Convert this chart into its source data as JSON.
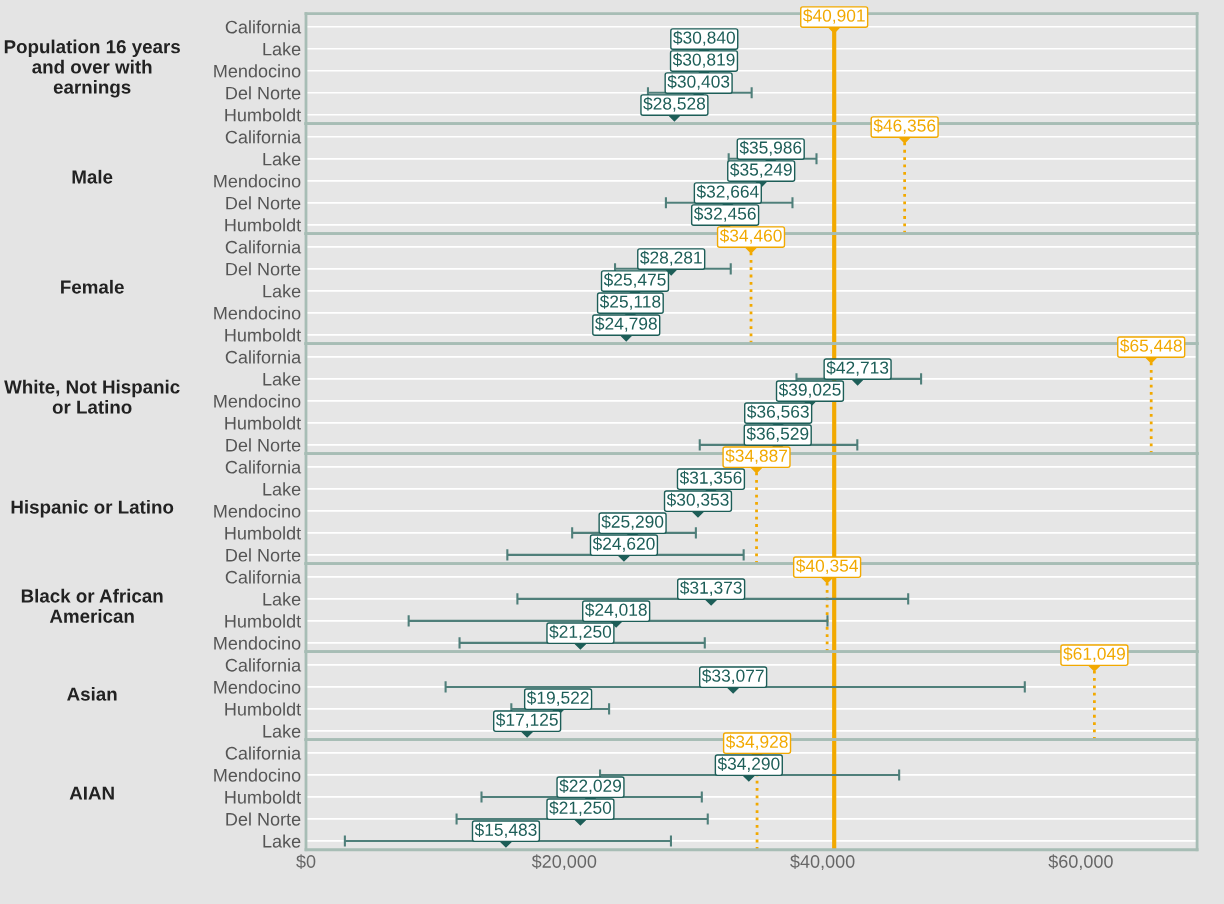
{
  "chart_data": [
    {
      "type": "scatter",
      "orientation": "horizontal",
      "title": "Population 16 years and over with earnings",
      "categories": [
        "California",
        "Lake",
        "Mendocino",
        "Del Norte",
        "Humboldt"
      ],
      "values": [
        40901,
        30840,
        30819,
        30403,
        28528
      ],
      "errors": [
        null,
        null,
        null,
        [
          26480,
          34510
        ],
        null
      ],
      "value_labels": [
        "$40,901",
        "$30,840",
        "$30,819",
        "$30,403",
        "$28,528"
      ],
      "colors": [
        "#f2a900",
        "#1d5e58",
        "#1d5e58",
        "#1d5e58",
        "#1d5e58"
      ],
      "marker": "diamond",
      "xlim": [
        0,
        69000
      ],
      "grid": "y",
      "tick_labels": "y",
      "ref_lines": [
        {
          "axis": "x",
          "value": 40901,
          "color": "#f2a900",
          "line_style": "solid"
        }
      ]
    },
    {
      "type": "scatter",
      "orientation": "horizontal",
      "title": "Male",
      "categories": [
        "California",
        "Lake",
        "Mendocino",
        "Del Norte",
        "Humboldt"
      ],
      "values": [
        46356,
        35986,
        35249,
        32664,
        32456
      ],
      "errors": [
        null,
        [
          32730,
          39530
        ],
        null,
        [
          27870,
          37670
        ],
        null
      ],
      "value_labels": [
        "$46,356",
        "$35,986",
        "$35,249",
        "$32,664",
        "$32,456"
      ],
      "colors": [
        "#f2a900",
        "#1d5e58",
        "#1d5e58",
        "#1d5e58",
        "#1d5e58"
      ],
      "marker": "diamond",
      "xlim": [
        0,
        69000
      ],
      "grid": "y",
      "tick_labels": "y",
      "ref_lines": [
        {
          "axis": "x",
          "value": 40901,
          "color": "#f2a900",
          "line_style": "solid"
        },
        {
          "axis": "x",
          "value": 46356,
          "color": "#f2a900",
          "line_style": "dotted"
        }
      ]
    },
    {
      "type": "scatter",
      "orientation": "horizontal",
      "title": "Female",
      "categories": [
        "California",
        "Del Norte",
        "Lake",
        "Mendocino",
        "Humboldt"
      ],
      "values": [
        34460,
        28281,
        25475,
        25118,
        24798
      ],
      "errors": [
        null,
        [
          23930,
          32890
        ],
        null,
        null,
        null
      ],
      "value_labels": [
        "$34,460",
        "$28,281",
        "$25,475",
        "$25,118",
        "$24,798"
      ],
      "colors": [
        "#f2a900",
        "#1d5e58",
        "#1d5e58",
        "#1d5e58",
        "#1d5e58"
      ],
      "marker": "diamond",
      "xlim": [
        0,
        69000
      ],
      "grid": "y",
      "tick_labels": "y",
      "ref_lines": [
        {
          "axis": "x",
          "value": 40901,
          "color": "#f2a900",
          "line_style": "solid"
        },
        {
          "axis": "x",
          "value": 34460,
          "color": "#f2a900",
          "line_style": "dotted"
        }
      ]
    },
    {
      "type": "scatter",
      "orientation": "horizontal",
      "title": "White, Not Hispanic or Latino",
      "categories": [
        "California",
        "Lake",
        "Mendocino",
        "Humboldt",
        "Del Norte"
      ],
      "values": [
        65448,
        42713,
        39025,
        36563,
        36529
      ],
      "errors": [
        null,
        [
          37980,
          47630
        ],
        null,
        null,
        [
          30490,
          42690
        ]
      ],
      "value_labels": [
        "$65,448",
        "$42,713",
        "$39,025",
        "$36,563",
        "$36,529"
      ],
      "colors": [
        "#f2a900",
        "#1d5e58",
        "#1d5e58",
        "#1d5e58",
        "#1d5e58"
      ],
      "marker": "diamond",
      "xlim": [
        0,
        69000
      ],
      "grid": "y",
      "tick_labels": "y",
      "ref_lines": [
        {
          "axis": "x",
          "value": 40901,
          "color": "#f2a900",
          "line_style": "solid"
        },
        {
          "axis": "x",
          "value": 65448,
          "color": "#f2a900",
          "line_style": "dotted"
        }
      ]
    },
    {
      "type": "scatter",
      "orientation": "horizontal",
      "title": "Hispanic or Latino",
      "categories": [
        "California",
        "Lake",
        "Mendocino",
        "Humboldt",
        "Del Norte"
      ],
      "values": [
        34887,
        31356,
        30353,
        25290,
        24620
      ],
      "errors": [
        null,
        null,
        null,
        [
          20610,
          30190
        ],
        [
          15590,
          33890
        ]
      ],
      "value_labels": [
        "$34,887",
        "$31,356",
        "$30,353",
        "$25,290",
        "$24,620"
      ],
      "colors": [
        "#f2a900",
        "#1d5e58",
        "#1d5e58",
        "#1d5e58",
        "#1d5e58"
      ],
      "marker": "diamond",
      "xlim": [
        0,
        69000
      ],
      "grid": "y",
      "tick_labels": "y",
      "ref_lines": [
        {
          "axis": "x",
          "value": 40901,
          "color": "#f2a900",
          "line_style": "solid"
        },
        {
          "axis": "x",
          "value": 34887,
          "color": "#f2a900",
          "line_style": "dotted"
        }
      ]
    },
    {
      "type": "scatter",
      "orientation": "horizontal",
      "title": "Black or African American",
      "categories": [
        "California",
        "Lake",
        "Humboldt",
        "Mendocino"
      ],
      "values": [
        40354,
        31373,
        24018,
        21250
      ],
      "errors": [
        null,
        [
          16370,
          46630
        ],
        [
          7950,
          40380
        ],
        [
          11890,
          30880
        ]
      ],
      "value_labels": [
        "$40,354",
        "$31,373",
        "$24,018",
        "$21,250"
      ],
      "colors": [
        "#f2a900",
        "#1d5e58",
        "#1d5e58",
        "#1d5e58"
      ],
      "marker": "diamond",
      "xlim": [
        0,
        69000
      ],
      "grid": "y",
      "tick_labels": "y",
      "ref_lines": [
        {
          "axis": "x",
          "value": 40901,
          "color": "#f2a900",
          "line_style": "solid"
        },
        {
          "axis": "x",
          "value": 40354,
          "color": "#f2a900",
          "line_style": "dotted"
        }
      ]
    },
    {
      "type": "scatter",
      "orientation": "horizontal",
      "title": "Asian",
      "categories": [
        "California",
        "Mendocino",
        "Humboldt",
        "Lake"
      ],
      "values": [
        61049,
        33077,
        19522,
        17125
      ],
      "errors": [
        null,
        [
          10810,
          55660
        ],
        [
          15900,
          23470
        ],
        null
      ],
      "value_labels": [
        "$61,049",
        "$33,077",
        "$19,522",
        "$17,125"
      ],
      "colors": [
        "#f2a900",
        "#1d5e58",
        "#1d5e58",
        "#1d5e58"
      ],
      "marker": "diamond",
      "xlim": [
        0,
        69000
      ],
      "grid": "y",
      "tick_labels": "y",
      "ref_lines": [
        {
          "axis": "x",
          "value": 40901,
          "color": "#f2a900",
          "line_style": "solid"
        },
        {
          "axis": "x",
          "value": 61049,
          "color": "#f2a900",
          "line_style": "dotted"
        }
      ]
    },
    {
      "type": "scatter",
      "orientation": "horizontal",
      "title": "AIAN",
      "categories": [
        "California",
        "Mendocino",
        "Humboldt",
        "Del Norte",
        "Lake"
      ],
      "values": [
        34928,
        34290,
        22029,
        21250,
        15483
      ],
      "errors": [
        null,
        [
          22770,
          45930
        ],
        [
          13590,
          30650
        ],
        [
          11660,
          31110
        ],
        [
          3010,
          28260
        ]
      ],
      "value_labels": [
        "$34,928",
        "$34,290",
        "$22,029",
        "$21,250",
        "$15,483"
      ],
      "colors": [
        "#f2a900",
        "#1d5e58",
        "#1d5e58",
        "#1d5e58",
        "#1d5e58"
      ],
      "marker": "diamond",
      "xlim": [
        0,
        69000
      ],
      "grid": "y",
      "xticks": [
        {
          "value": 0,
          "label": "$0"
        },
        {
          "value": 20000,
          "label": "$20,000"
        },
        {
          "value": 40000,
          "label": "$40,000"
        },
        {
          "value": 60000,
          "label": "$60,000"
        }
      ],
      "ref_lines": [
        {
          "axis": "x",
          "value": 40901,
          "color": "#f2a900",
          "line_style": "solid"
        },
        {
          "axis": "x",
          "value": 34928,
          "color": "#f2a900",
          "line_style": "dotted"
        }
      ]
    }
  ]
}
